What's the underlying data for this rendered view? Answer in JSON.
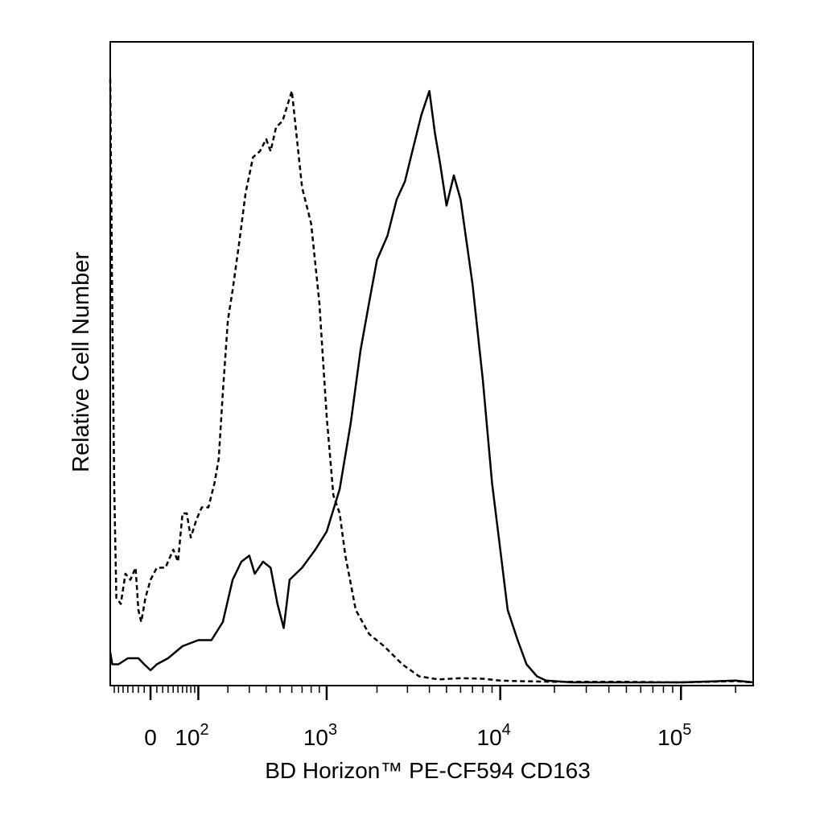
{
  "chart_data": {
    "type": "line",
    "xlabel": "BD Horizon™ PE-CF594 CD163",
    "ylabel": "Relative Cell Number",
    "x_scale": "biexponential",
    "x_ticks": [
      {
        "value": 0,
        "label": "0",
        "exp": ""
      },
      {
        "value": 100,
        "label": "10",
        "exp": "2"
      },
      {
        "value": 1000,
        "label": "10",
        "exp": "3"
      },
      {
        "value": 10000,
        "label": "10",
        "exp": "4"
      },
      {
        "value": 100000,
        "label": "10",
        "exp": "5"
      }
    ],
    "xlim": [
      -80,
      250000
    ],
    "ylim": [
      0,
      100
    ],
    "grid": false,
    "legend": "none",
    "series": [
      {
        "style": "dashed",
        "points": [
          [
            -80,
            100
          ],
          [
            -75,
            62
          ],
          [
            -70,
            32
          ],
          [
            -65,
            14
          ],
          [
            -55,
            13
          ],
          [
            -45,
            18
          ],
          [
            -35,
            17
          ],
          [
            -25,
            19
          ],
          [
            -20,
            12
          ],
          [
            -15,
            10
          ],
          [
            -8,
            14
          ],
          [
            0,
            17
          ],
          [
            10,
            19
          ],
          [
            25,
            19
          ],
          [
            40,
            22
          ],
          [
            50,
            20
          ],
          [
            60,
            28
          ],
          [
            70,
            28
          ],
          [
            80,
            24
          ],
          [
            95,
            27
          ],
          [
            110,
            29
          ],
          [
            130,
            29
          ],
          [
            150,
            33
          ],
          [
            165,
            37
          ],
          [
            180,
            48
          ],
          [
            200,
            60
          ],
          [
            220,
            65
          ],
          [
            250,
            73
          ],
          [
            280,
            81
          ],
          [
            320,
            87
          ],
          [
            360,
            88
          ],
          [
            400,
            90
          ],
          [
            430,
            88
          ],
          [
            470,
            92
          ],
          [
            520,
            93
          ],
          [
            600,
            98
          ],
          [
            700,
            82
          ],
          [
            800,
            76
          ],
          [
            900,
            63
          ],
          [
            1000,
            44
          ],
          [
            1100,
            31
          ],
          [
            1200,
            28
          ],
          [
            1300,
            21
          ],
          [
            1500,
            12
          ],
          [
            1800,
            8
          ],
          [
            2200,
            6
          ],
          [
            2800,
            3
          ],
          [
            3500,
            1
          ],
          [
            4500,
            0.5
          ],
          [
            6000,
            0.7
          ],
          [
            8000,
            0.6
          ],
          [
            10000,
            0.3
          ],
          [
            13000,
            0.2
          ],
          [
            20000,
            0.1
          ],
          [
            50000,
            0.1
          ],
          [
            100000,
            0
          ],
          [
            200000,
            0.2
          ],
          [
            250000,
            0
          ]
        ]
      },
      {
        "style": "solid",
        "points": [
          [
            -80,
            5
          ],
          [
            -75,
            3
          ],
          [
            -60,
            3
          ],
          [
            -40,
            4
          ],
          [
            -20,
            4
          ],
          [
            -10,
            3
          ],
          [
            0,
            2
          ],
          [
            10,
            3
          ],
          [
            30,
            4
          ],
          [
            60,
            6
          ],
          [
            100,
            7
          ],
          [
            140,
            7
          ],
          [
            180,
            10
          ],
          [
            220,
            17
          ],
          [
            260,
            20
          ],
          [
            300,
            21
          ],
          [
            330,
            18
          ],
          [
            380,
            20
          ],
          [
            430,
            19
          ],
          [
            480,
            13
          ],
          [
            530,
            9
          ],
          [
            580,
            17
          ],
          [
            700,
            19
          ],
          [
            850,
            22
          ],
          [
            1000,
            25
          ],
          [
            1200,
            32
          ],
          [
            1400,
            43
          ],
          [
            1600,
            55
          ],
          [
            1800,
            63
          ],
          [
            2000,
            70
          ],
          [
            2300,
            74
          ],
          [
            2600,
            80
          ],
          [
            2900,
            83
          ],
          [
            3200,
            88
          ],
          [
            3600,
            94
          ],
          [
            4000,
            98
          ],
          [
            4300,
            91
          ],
          [
            4600,
            86
          ],
          [
            5000,
            79
          ],
          [
            5500,
            84
          ],
          [
            6000,
            80
          ],
          [
            7000,
            66
          ],
          [
            8000,
            50
          ],
          [
            9000,
            33
          ],
          [
            10000,
            22
          ],
          [
            11000,
            12
          ],
          [
            12500,
            7
          ],
          [
            14000,
            3
          ],
          [
            16000,
            1
          ],
          [
            18000,
            0.3
          ],
          [
            25000,
            0
          ],
          [
            50000,
            0
          ],
          [
            100000,
            0
          ],
          [
            200000,
            0.3
          ],
          [
            250000,
            0
          ]
        ]
      }
    ]
  }
}
